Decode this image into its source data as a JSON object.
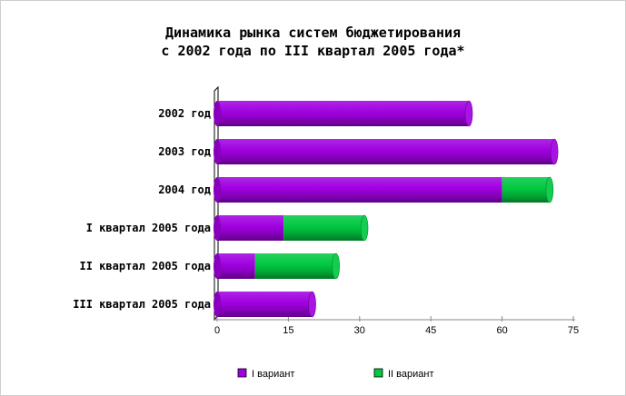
{
  "chart_data": {
    "type": "bar",
    "orientation": "horizontal",
    "stacked": true,
    "title_line1": "Динамика рынка систем бюджетирования",
    "title_line2": "с 2002 года по III квартал 2005 года*",
    "categories": [
      "2002 год",
      "2003 год",
      "2004 год",
      "I квартал 2005 года",
      "II квартал 2005 года",
      "III квартал 2005 года"
    ],
    "series": [
      {
        "name": "I вариант",
        "color": "#a000e0",
        "values": [
          53,
          71,
          60,
          14,
          8,
          20
        ]
      },
      {
        "name": "II вариант",
        "color": "#00c840",
        "values": [
          0,
          0,
          10,
          17,
          17,
          0
        ]
      }
    ],
    "xlim": [
      0,
      75
    ],
    "ticks": [
      0,
      15,
      30,
      45,
      60,
      75
    ],
    "legend_position": "bottom",
    "grid": false
  }
}
